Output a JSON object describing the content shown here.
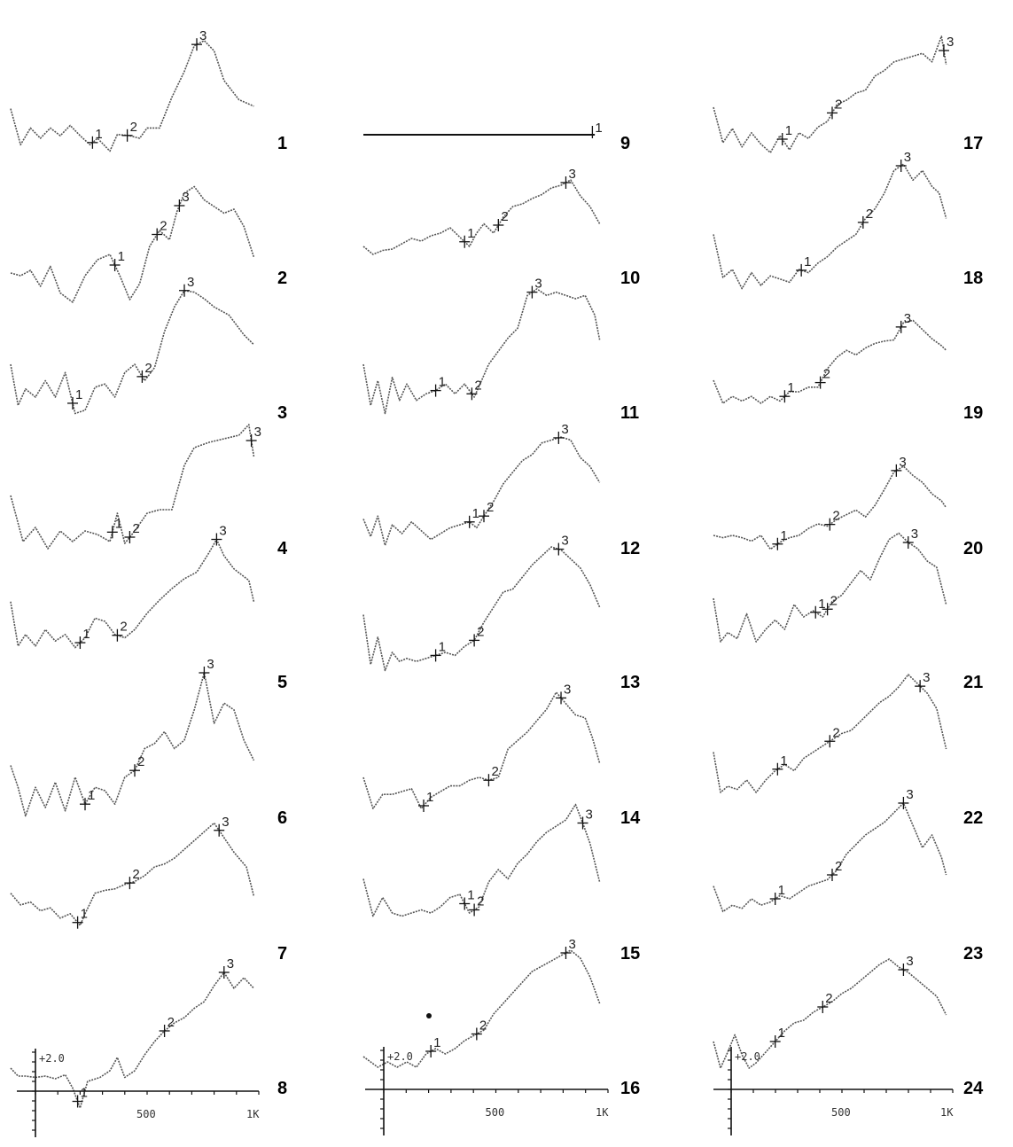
{
  "marker_labels": [
    "1",
    "2",
    "3"
  ],
  "panels": [
    {
      "id": "1"
    },
    {
      "id": "2"
    },
    {
      "id": "3"
    },
    {
      "id": "4"
    },
    {
      "id": "5"
    },
    {
      "id": "6"
    },
    {
      "id": "7"
    },
    {
      "id": "8"
    },
    {
      "id": "9"
    },
    {
      "id": "10"
    },
    {
      "id": "11"
    },
    {
      "id": "12"
    },
    {
      "id": "13"
    },
    {
      "id": "14"
    },
    {
      "id": "15"
    },
    {
      "id": "16"
    },
    {
      "id": "17"
    },
    {
      "id": "18"
    },
    {
      "id": "19"
    },
    {
      "id": "20"
    },
    {
      "id": "21"
    },
    {
      "id": "22"
    },
    {
      "id": "23"
    },
    {
      "id": "24"
    }
  ],
  "axis": {
    "amplitude_label": "+2.0",
    "mid_label": "500",
    "end_label": "1K"
  },
  "colors": {
    "trace": "#555555",
    "ink": "#111111",
    "background": "#ffffff"
  }
}
